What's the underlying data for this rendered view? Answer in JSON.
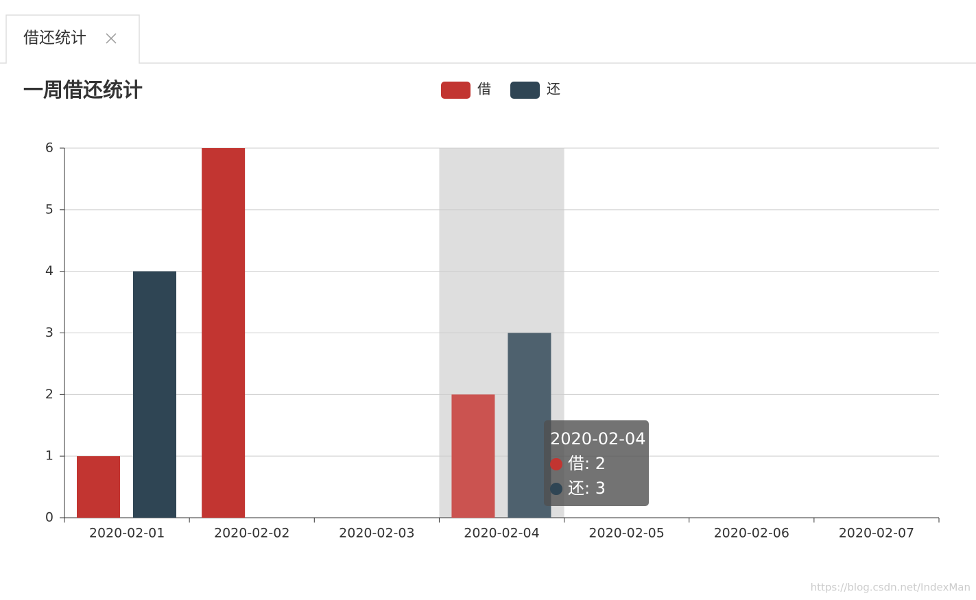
{
  "tab": "借还统计",
  "chart_data": {
    "type": "bar",
    "title": "一周借还统计",
    "categories": [
      "2020-02-01",
      "2020-02-02",
      "2020-02-03",
      "2020-02-04",
      "2020-02-05",
      "2020-02-06",
      "2020-02-07"
    ],
    "series": [
      {
        "name": "借",
        "color": "#c23531",
        "values": [
          1,
          6,
          0,
          2,
          0,
          0,
          0
        ]
      },
      {
        "name": "还",
        "color": "#2f4554",
        "values": [
          4,
          0,
          0,
          3,
          0,
          0,
          0
        ]
      }
    ],
    "ylim": [
      0,
      6
    ],
    "yticks": [
      0,
      1,
      2,
      3,
      4,
      5,
      6
    ],
    "grid": true,
    "legend": "top"
  },
  "tooltip": {
    "title": "2020-02-04",
    "lines": [
      "借: 2",
      "还: 3"
    ]
  },
  "watermark": "https://blog.csdn.net/IndexMan"
}
